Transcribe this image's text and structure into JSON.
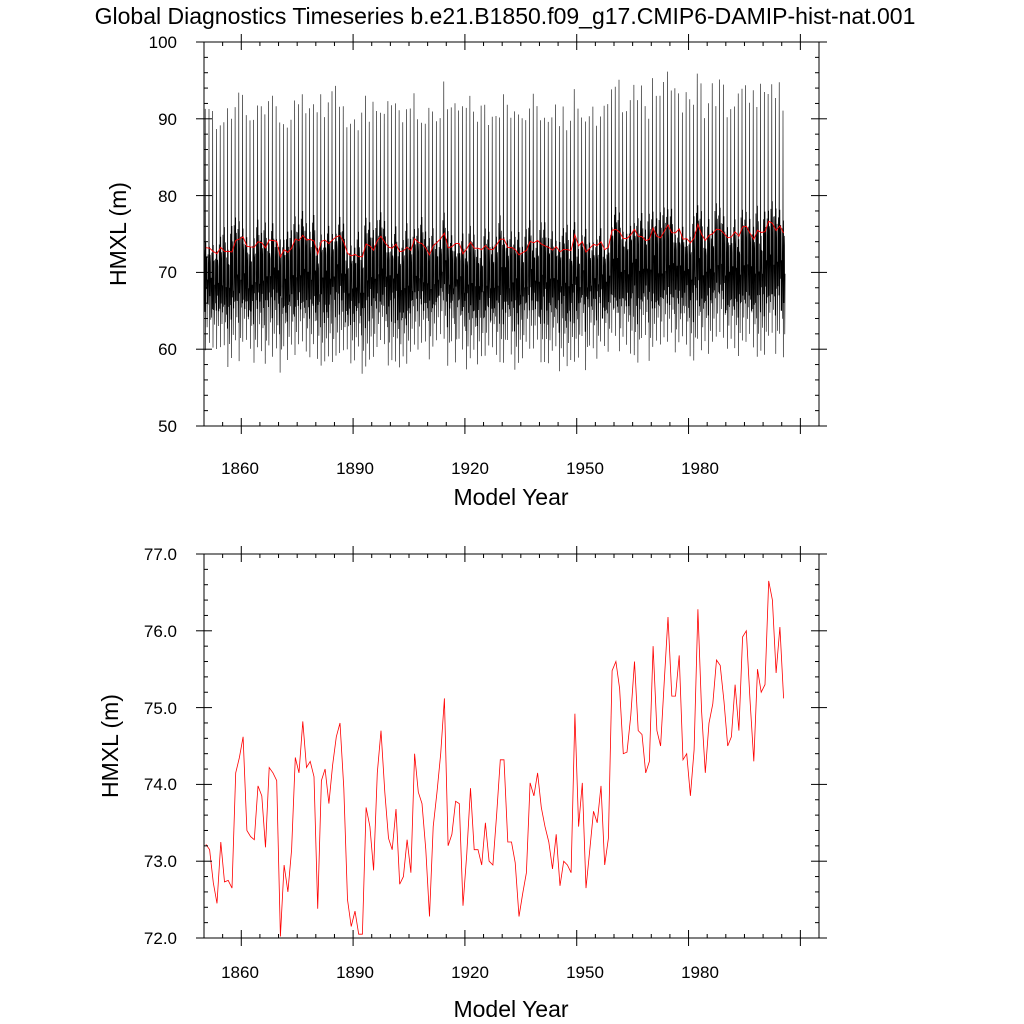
{
  "title": "Global Diagnostics Timeseries b.e21.B1850.f09_g17.CMIP6-DAMIP-hist-nat.001",
  "colors": {
    "monthly": "#000000",
    "annual": "#ff0000",
    "axes": "#000000"
  },
  "chart_data": [
    {
      "type": "line",
      "xlabel": "Model Year",
      "ylabel": "HMXL (m)",
      "xlim": [
        1850,
        2015
      ],
      "ylim": [
        50,
        100
      ],
      "xticks": [
        "1860",
        "1890",
        "1920",
        "1950",
        "1980"
      ],
      "yticks": [
        "50",
        "60",
        "70",
        "80",
        "90",
        "100"
      ],
      "series": [
        {
          "role": "monthly",
          "color": "#000000",
          "seasonal_peak_range": [
            88,
            97
          ],
          "secondary_peak_range": [
            73,
            80
          ],
          "trough_range": [
            56,
            62
          ],
          "notes": "monthly global mean values oscillating annually"
        },
        {
          "role": "annual-mean",
          "color": "#ff0000",
          "values_ref": "annual"
        }
      ]
    },
    {
      "type": "line",
      "xlabel": "Model Year",
      "ylabel": "HMXL (m)",
      "xlim": [
        1850,
        2015
      ],
      "ylim": [
        72.0,
        77.0
      ],
      "xticks": [
        "1860",
        "1890",
        "1920",
        "1950",
        "1980"
      ],
      "yticks": [
        "72.0",
        "73.0",
        "74.0",
        "75.0",
        "76.0",
        "77.0"
      ],
      "series": [
        {
          "role": "annual-mean",
          "color": "#ff0000",
          "x_start": 1850,
          "values": [
            73.22,
            73.15,
            72.72,
            72.45,
            73.25,
            72.73,
            72.75,
            72.65,
            74.15,
            74.35,
            74.62,
            73.4,
            73.32,
            73.28,
            73.98,
            73.85,
            73.18,
            74.22,
            74.15,
            74.05,
            72.02,
            72.95,
            72.6,
            73.15,
            74.35,
            74.15,
            74.82,
            74.22,
            74.3,
            74.1,
            72.38,
            74.05,
            74.2,
            73.75,
            74.25,
            74.62,
            74.8,
            73.95,
            72.5,
            72.15,
            72.35,
            72.05,
            72.05,
            73.7,
            73.45,
            72.88,
            74.15,
            74.7,
            73.9,
            73.3,
            73.15,
            73.68,
            72.7,
            72.8,
            73.28,
            72.85,
            74.4,
            73.9,
            73.75,
            73.15,
            72.28,
            73.45,
            73.9,
            74.4,
            75.12,
            73.2,
            73.35,
            73.78,
            73.75,
            72.42,
            73.1,
            73.95,
            73.15,
            73.15,
            72.95,
            73.5,
            73.0,
            72.95,
            73.6,
            74.32,
            74.32,
            73.25,
            73.25,
            72.98,
            72.28,
            72.58,
            72.85,
            74.02,
            73.85,
            74.15,
            73.7,
            73.45,
            73.25,
            72.9,
            73.35,
            72.68,
            73.0,
            72.95,
            72.85,
            74.92,
            73.45,
            74.02,
            72.65,
            73.15,
            73.65,
            73.5,
            73.98,
            72.95,
            73.3,
            75.48,
            75.6,
            75.25,
            74.4,
            74.42,
            74.9,
            75.6,
            74.7,
            74.65,
            74.15,
            74.3,
            75.8,
            74.7,
            74.5,
            75.35,
            76.18,
            75.15,
            75.15,
            75.68,
            74.32,
            74.4,
            73.85,
            74.45,
            76.28,
            74.95,
            74.15,
            74.8,
            75.05,
            75.62,
            75.55,
            75.08,
            74.5,
            74.62,
            75.3,
            74.7,
            75.92,
            76.0,
            75.1,
            74.3,
            75.5,
            75.2,
            75.3,
            76.65,
            76.4,
            75.45,
            76.05,
            75.12
          ]
        }
      ]
    }
  ]
}
